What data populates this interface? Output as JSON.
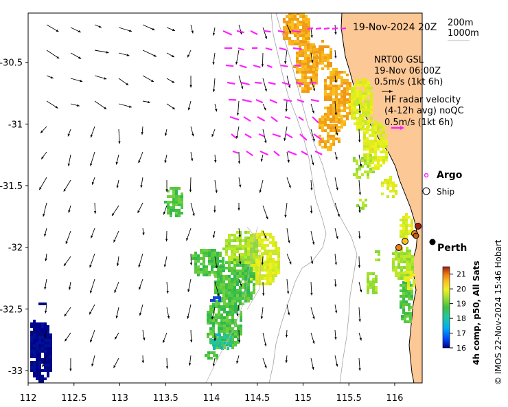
{
  "map": {
    "date_label": "19-Nov-2024 20Z",
    "isobath_labels": [
      "200m",
      "1000m"
    ],
    "model_block": {
      "line1": "NRT00 GSL",
      "line2": "19-Nov 06:00Z",
      "line3": "0.5m/s (1kt 6h)"
    },
    "hf_block": {
      "line1": "HF radar velocity",
      "line2": "(4-12h avg) noQC",
      "line3": "0.5m/s (1kt 6h)"
    },
    "argo_label": "Argo",
    "ship_label": "Ship",
    "city_label": "Perth",
    "colorbar": {
      "title": "4h comp, p50, All Sats",
      "ticks": [
        "21",
        "20",
        "19",
        "18",
        "17",
        "16"
      ],
      "min": 16,
      "max": 21.5
    },
    "credit": "© IMOS 22-Nov-2024 15:46 Hobart",
    "x_ticks": [
      "112",
      "112.5",
      "113",
      "113.5",
      "114",
      "114.5",
      "115",
      "115.5",
      "116"
    ],
    "y_ticks": [
      "-30.5",
      "-31",
      "-31.5",
      "-32",
      "-32.5",
      "-33"
    ],
    "x_range": [
      112,
      116.3
    ],
    "y_range": [
      -33.1,
      -30.1
    ],
    "colors": {
      "land": "#fcc896",
      "hf_arrow": "#ff20ff",
      "current_arrow": "#000000",
      "isobath": "#a0a0a0",
      "argo": "#ff20ff"
    }
  }
}
